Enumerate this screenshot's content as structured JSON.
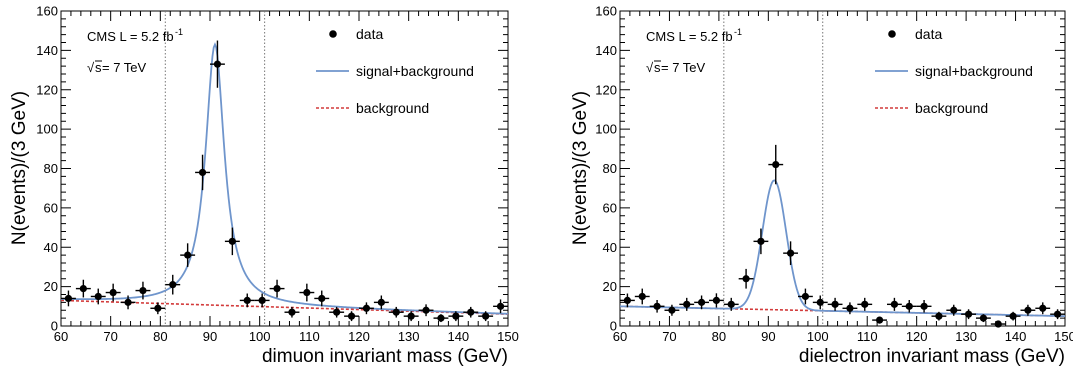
{
  "chart_data": [
    {
      "type": "scatter",
      "xlabel": "dimuon invariant mass (GeV)",
      "ylabel": "N(events)/(3 GeV)",
      "xlim": [
        60,
        150
      ],
      "ylim": [
        0,
        160
      ],
      "xticks": [
        "60",
        "70",
        "80",
        "90",
        "100",
        "110",
        "120",
        "130",
        "140",
        "150"
      ],
      "yticks": [
        "0",
        "20",
        "40",
        "60",
        "80",
        "100",
        "120",
        "140",
        "160"
      ],
      "annotation": {
        "lumi": "CMS L = 5.2 fb",
        "lumi_sup": "-1",
        "energy_pre": "√",
        "energy_s": "s",
        "energy_post": " = 7 TeV"
      },
      "legend": {
        "data": "data",
        "signal": "signal+background",
        "background": "background"
      },
      "window": [
        81,
        101
      ],
      "x": [
        61.5,
        64.5,
        67.5,
        70.5,
        73.5,
        76.5,
        79.5,
        82.5,
        85.5,
        88.5,
        91.5,
        94.5,
        97.5,
        100.5,
        103.5,
        106.5,
        109.5,
        112.5,
        115.5,
        118.5,
        121.5,
        124.5,
        127.5,
        130.5,
        133.5,
        136.5,
        139.5,
        142.5,
        145.5,
        148.5
      ],
      "y": [
        14,
        19,
        15,
        17,
        12,
        18,
        9,
        21,
        36,
        78,
        133,
        43,
        13,
        13,
        19,
        7,
        17,
        14,
        7,
        5,
        9,
        12,
        7,
        5,
        8,
        4,
        5,
        7,
        5,
        10
      ],
      "yerr": [
        4,
        4.5,
        4,
        4.5,
        3.5,
        4.5,
        3,
        5,
        6,
        9,
        12,
        7,
        3.5,
        3.5,
        4.5,
        2.7,
        4.5,
        4,
        2.7,
        2.5,
        3,
        3.5,
        2.7,
        2.5,
        3,
        2,
        2.5,
        2.7,
        2.5,
        3.5
      ],
      "signal_peak": 143,
      "signal_mean": 91.0,
      "signal_gamma": 2.3,
      "background_start": 13,
      "background_end": 6,
      "colors": {
        "signal": "#6f95cc",
        "background": "#d23a3a",
        "data": "#000000",
        "window": "#777777"
      }
    },
    {
      "type": "scatter",
      "xlabel": "dielectron invariant mass (GeV)",
      "ylabel": "N(events)/(3 GeV)",
      "xlim": [
        60,
        150
      ],
      "ylim": [
        0,
        160
      ],
      "xticks": [
        "60",
        "70",
        "80",
        "90",
        "100",
        "110",
        "120",
        "130",
        "140",
        "150"
      ],
      "yticks": [
        "0",
        "20",
        "40",
        "60",
        "80",
        "100",
        "120",
        "140",
        "160"
      ],
      "annotation": {
        "lumi": "CMS L = 5.2 fb",
        "lumi_sup": "-1",
        "energy_pre": "√",
        "energy_s": "s",
        "energy_post": " = 7 TeV"
      },
      "legend": {
        "data": "data",
        "signal": "signal+background",
        "background": "background"
      },
      "window": [
        81,
        101
      ],
      "x": [
        61.5,
        64.5,
        67.5,
        70.5,
        73.5,
        76.5,
        79.5,
        82.5,
        85.5,
        88.5,
        91.5,
        94.5,
        97.5,
        100.5,
        103.5,
        106.5,
        109.5,
        112.5,
        115.5,
        118.5,
        121.5,
        124.5,
        127.5,
        130.5,
        133.5,
        136.5,
        139.5,
        142.5,
        145.5,
        148.5
      ],
      "y": [
        13,
        15,
        10,
        8,
        11,
        12,
        13,
        11,
        24,
        43,
        82,
        37,
        15,
        12,
        11,
        9,
        11,
        3,
        11,
        10,
        10,
        5,
        8,
        6,
        4,
        1,
        5,
        8,
        9,
        6
      ],
      "yerr": [
        3.5,
        4,
        3.2,
        2.8,
        3.3,
        3.5,
        3.6,
        3.3,
        5,
        6.5,
        10,
        6,
        4,
        3.5,
        3.3,
        3,
        3.3,
        1.7,
        3.3,
        3.2,
        3.2,
        2.2,
        2.8,
        2.5,
        2,
        1,
        2.2,
        2.8,
        3,
        2.5
      ],
      "signal_peak": 74,
      "signal_mean": 91.2,
      "signal_sigma": 2.4,
      "background_start": 10,
      "background_end": 5,
      "colors": {
        "signal": "#6f95cc",
        "background": "#d23a3a",
        "data": "#000000",
        "window": "#777777"
      }
    }
  ]
}
